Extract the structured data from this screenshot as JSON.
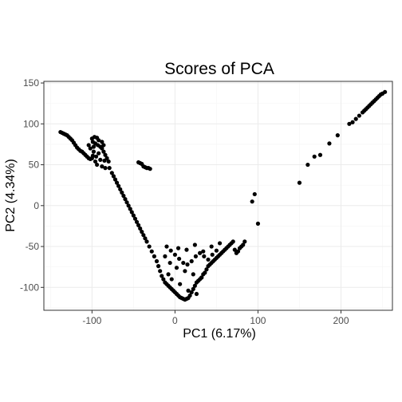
{
  "chart_data": {
    "type": "scatter",
    "title": "Scores of PCA",
    "xlabel": "PC1 (6.17%)",
    "ylabel": "PC2 (4.34%)",
    "xlim": [
      -158,
      262
    ],
    "ylim": [
      -128,
      152
    ],
    "x_ticks": [
      -100,
      0,
      100,
      200
    ],
    "x_tick_labels": [
      "-100",
      "0",
      "100",
      "200"
    ],
    "y_ticks": [
      -100,
      -50,
      0,
      50,
      100,
      150
    ],
    "y_tick_labels": [
      "-100",
      "-50",
      "0",
      "50",
      "100",
      "150"
    ],
    "grid": true,
    "point_color": "#000000",
    "series": [
      {
        "values": [
          [
            -138,
            90
          ],
          [
            -136,
            89
          ],
          [
            -134,
            88
          ],
          [
            -132,
            87
          ],
          [
            -130,
            86
          ],
          [
            -128,
            84
          ],
          [
            -126,
            82
          ],
          [
            -124,
            80
          ],
          [
            -122,
            77
          ],
          [
            -120,
            74
          ],
          [
            -118,
            71
          ],
          [
            -116,
            69
          ],
          [
            -114,
            67
          ],
          [
            -112,
            66
          ],
          [
            -110,
            64
          ],
          [
            -108,
            62
          ],
          [
            -106,
            60
          ],
          [
            -104,
            58
          ],
          [
            -102,
            57
          ],
          [
            -100,
            58
          ],
          [
            -99,
            61
          ],
          [
            -98,
            66
          ],
          [
            -98,
            72
          ],
          [
            -99,
            78
          ],
          [
            -100,
            82
          ],
          [
            -97,
            84
          ],
          [
            -94,
            83
          ],
          [
            -92,
            80
          ],
          [
            -96,
            76
          ],
          [
            -93,
            74
          ],
          [
            -90,
            72
          ],
          [
            -88,
            70
          ],
          [
            -86,
            66
          ],
          [
            -84,
            62
          ],
          [
            -82,
            58
          ],
          [
            -80,
            54
          ],
          [
            -85,
            55
          ],
          [
            -90,
            56
          ],
          [
            -95,
            60
          ],
          [
            -102,
            70
          ],
          [
            -104,
            74
          ],
          [
            -88,
            78
          ],
          [
            -86,
            74
          ],
          [
            -92,
            64
          ],
          [
            -96,
            54
          ],
          [
            -94,
            50
          ],
          [
            -88,
            48
          ],
          [
            -84,
            46
          ],
          [
            -79,
            46
          ],
          [
            -76,
            40
          ],
          [
            -74,
            36
          ],
          [
            -72,
            32
          ],
          [
            -70,
            28
          ],
          [
            -68,
            24
          ],
          [
            -66,
            20
          ],
          [
            -64,
            16
          ],
          [
            -62,
            12
          ],
          [
            -60,
            8
          ],
          [
            -58,
            4
          ],
          [
            -56,
            0
          ],
          [
            -54,
            -4
          ],
          [
            -52,
            -8
          ],
          [
            -50,
            -12
          ],
          [
            -48,
            -16
          ],
          [
            -46,
            -20
          ],
          [
            -44,
            -24
          ],
          [
            -42,
            -28
          ],
          [
            -40,
            -32
          ],
          [
            -38,
            -36
          ],
          [
            -36,
            -40
          ],
          [
            -34,
            -44
          ],
          [
            -31,
            -50
          ],
          [
            -28,
            -56
          ],
          [
            -25,
            -62
          ],
          [
            -22,
            -68
          ],
          [
            -20,
            -74
          ],
          [
            -18,
            -80
          ],
          [
            -16,
            -86
          ],
          [
            -14,
            -90
          ],
          [
            -12,
            -94
          ],
          [
            -10,
            -96
          ],
          [
            -8,
            -98
          ],
          [
            -6,
            -100
          ],
          [
            -4,
            -102
          ],
          [
            -2,
            -104
          ],
          [
            0,
            -106
          ],
          [
            2,
            -108
          ],
          [
            4,
            -110
          ],
          [
            6,
            -112
          ],
          [
            8,
            -113
          ],
          [
            10,
            -114
          ],
          [
            12,
            -115
          ],
          [
            14,
            -114
          ],
          [
            16,
            -113
          ],
          [
            18,
            -110
          ],
          [
            20,
            -106
          ],
          [
            22,
            -102
          ],
          [
            24,
            -98
          ],
          [
            26,
            -94
          ],
          [
            28,
            -92
          ],
          [
            30,
            -90
          ],
          [
            32,
            -88
          ],
          [
            34,
            -84
          ],
          [
            36,
            -82
          ],
          [
            38,
            -78
          ],
          [
            40,
            -74
          ],
          [
            42,
            -72
          ],
          [
            44,
            -70
          ],
          [
            46,
            -68
          ],
          [
            48,
            -66
          ],
          [
            50,
            -64
          ],
          [
            52,
            -62
          ],
          [
            54,
            -60
          ],
          [
            56,
            -58
          ],
          [
            58,
            -56
          ],
          [
            60,
            -54
          ],
          [
            62,
            -52
          ],
          [
            64,
            -50
          ],
          [
            66,
            -48
          ],
          [
            68,
            -46
          ],
          [
            70,
            -44
          ],
          [
            72,
            -54
          ],
          [
            74,
            -58
          ],
          [
            76,
            -56
          ],
          [
            78,
            -52
          ],
          [
            80,
            -50
          ],
          [
            82,
            -48
          ],
          [
            -10,
            -50
          ],
          [
            -5,
            -55
          ],
          [
            0,
            -60
          ],
          [
            5,
            -65
          ],
          [
            10,
            -70
          ],
          [
            15,
            -72
          ],
          [
            20,
            -68
          ],
          [
            25,
            -62
          ],
          [
            30,
            -58
          ],
          [
            35,
            -62
          ],
          [
            40,
            -66
          ],
          [
            45,
            -60
          ],
          [
            50,
            -55
          ],
          [
            -6,
            -70
          ],
          [
            2,
            -76
          ],
          [
            12,
            -80
          ],
          [
            22,
            -84
          ],
          [
            32,
            -88
          ],
          [
            -12,
            -62
          ],
          [
            -8,
            -84
          ],
          [
            -4,
            -90
          ],
          [
            6,
            -96
          ],
          [
            16,
            -104
          ],
          [
            26,
            -108
          ],
          [
            4,
            -52
          ],
          [
            14,
            -54
          ],
          [
            24,
            -48
          ],
          [
            34,
            -56
          ],
          [
            44,
            -50
          ],
          [
            54,
            -46
          ],
          [
            -44,
            53
          ],
          [
            -42,
            52
          ],
          [
            -40,
            51
          ],
          [
            -36,
            47
          ],
          [
            -34,
            46
          ],
          [
            -32,
            46
          ],
          [
            -30,
            45
          ],
          [
            -38,
            48
          ],
          [
            93,
            5
          ],
          [
            96,
            14
          ],
          [
            100,
            -22
          ],
          [
            84,
            -44
          ],
          [
            150,
            28
          ],
          [
            160,
            50
          ],
          [
            168,
            60
          ],
          [
            175,
            62
          ],
          [
            186,
            76
          ],
          [
            196,
            86
          ],
          [
            210,
            100
          ],
          [
            214,
            102
          ],
          [
            218,
            106
          ],
          [
            222,
            110
          ],
          [
            226,
            114
          ],
          [
            230,
            118
          ],
          [
            234,
            122
          ],
          [
            238,
            126
          ],
          [
            242,
            130
          ],
          [
            246,
            134
          ],
          [
            250,
            137
          ],
          [
            253,
            139
          ],
          [
            228,
            116
          ],
          [
            236,
            124
          ],
          [
            244,
            132
          ],
          [
            232,
            120
          ],
          [
            240,
            128
          ],
          [
            248,
            136
          ]
        ]
      }
    ]
  }
}
